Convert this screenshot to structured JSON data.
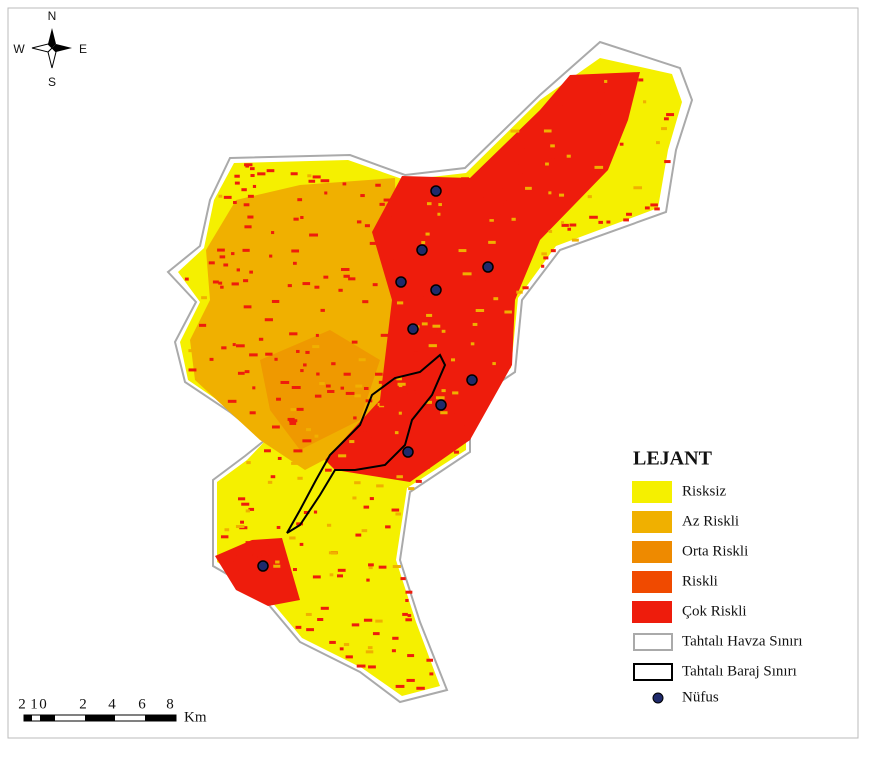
{
  "compass": {
    "north": "N",
    "south": "S",
    "west": "W",
    "east": "E"
  },
  "scale_bar": {
    "labels": [
      "2",
      "1",
      "0",
      "2",
      "4",
      "6",
      "8"
    ],
    "unit": "Km"
  },
  "legend": {
    "title": "LEJANT",
    "items": [
      "Risksiz",
      "Az Riskli",
      "Orta Riskli",
      "Riskli",
      "Çok Riskli",
      "Tahtalı Havza Sınırı",
      "Tahtalı Baraj Sınırı",
      "Nüfus"
    ]
  }
}
